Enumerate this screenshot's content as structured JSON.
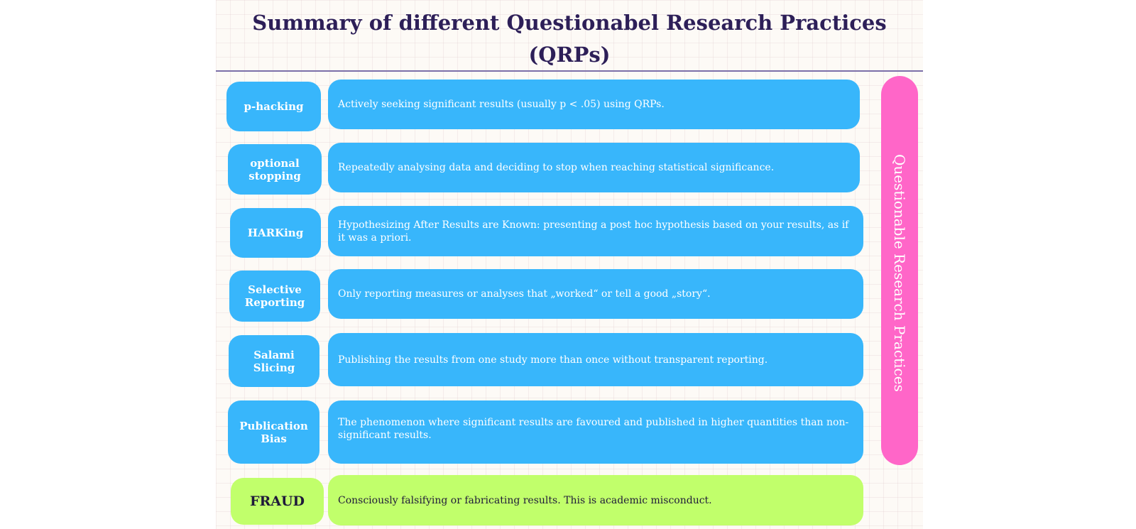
{
  "title": "Summary of different Questionabel Research Practices (QRPs)",
  "side_label": "Questionable Research Practices",
  "colors": {
    "title": "#2d1f58",
    "qrp_blue": "#38b6fb",
    "fraud_green": "#c1ff6b",
    "side_pink": "#ff66c8"
  },
  "practices": [
    {
      "term": "p-hacking",
      "description": "Actively seeking significant results (usually p < .05) using QRPs."
    },
    {
      "term": "optional stopping",
      "description": "Repeatedly analysing data and deciding to stop when reaching statistical significance."
    },
    {
      "term": "HARKing",
      "description": "Hypothesizing After Results are Known: presenting a post hoc hypothesis based on your results, as if it was a priori."
    },
    {
      "term": "Selective Reporting",
      "description": "Only reporting measures or analyses that „worked“ or tell a good „story“."
    },
    {
      "term": "Salami Slicing",
      "description": "Publishing the results from one study more than once without transparent reporting."
    },
    {
      "term": "Publication Bias",
      "description": "The phenomenon where significant results are favoured and published in higher quantities than non-significant results."
    }
  ],
  "fraud": {
    "term": "FRAUD",
    "description": "Consciously falsifying or fabricating results. This is academic misconduct."
  }
}
